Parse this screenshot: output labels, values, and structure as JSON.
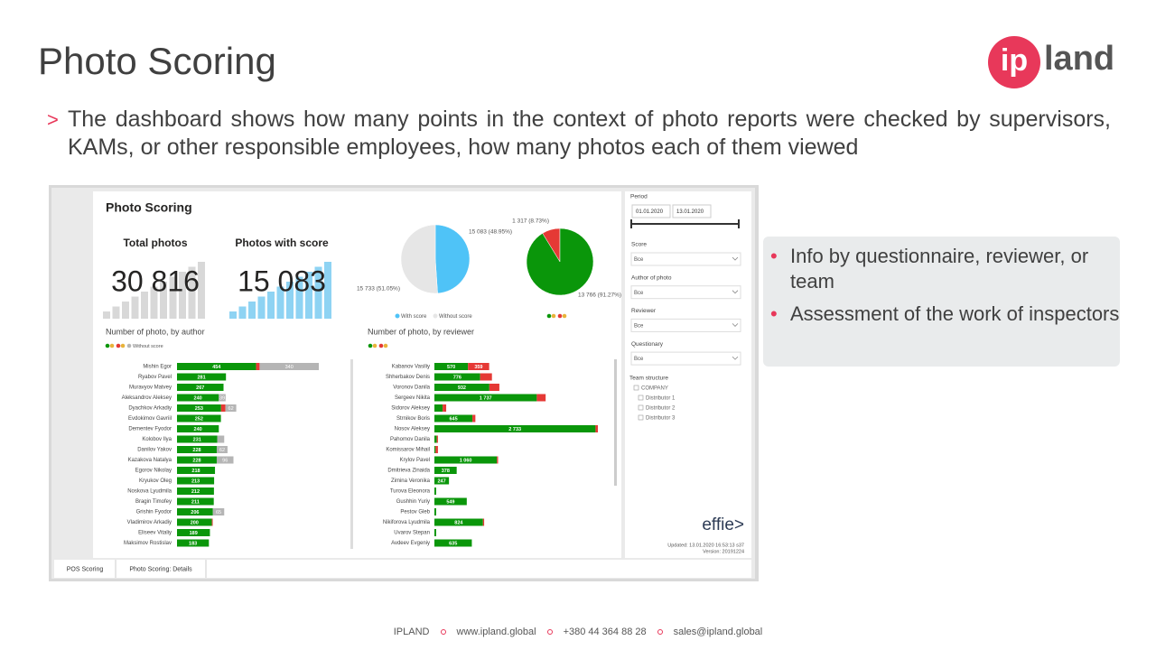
{
  "header": {
    "title": "Photo Scoring",
    "logo": {
      "left": "ip",
      "right": "land"
    }
  },
  "intro": {
    "marker": ">",
    "text": "The dashboard shows how many points in the context of photo reports were checked by supervisors, KAMs, or other responsible employees, how many photos each of them viewed"
  },
  "dashboard": {
    "title": "Photo Scoring",
    "kpis": [
      {
        "label": "Total photos",
        "value": "30 816"
      },
      {
        "label": "Photos with score",
        "value": "15 083"
      }
    ],
    "coverage_pie": {
      "slices": [
        {
          "name": "With score",
          "value": 15083,
          "label": "15 083 (48.95%)",
          "color": "#4fc3f7"
        },
        {
          "name": "Without score",
          "value": 15733,
          "label": "15 733 (51.05%)",
          "color": "#e6e6e6"
        }
      ]
    },
    "result_pie": {
      "slices": [
        {
          "value": 1317,
          "label": "1 317 (8.73%)",
          "color": "#e53935"
        },
        {
          "value": 13766,
          "label": "13 766 (91.27%)",
          "color": "#0a960a"
        }
      ]
    },
    "by_author": {
      "title": "Number of photo, by author",
      "legend": "Without score",
      "rows": [
        {
          "name": "Mishin Egor",
          "score": 454,
          "fail": 20,
          "none": 340,
          "none_label": "340"
        },
        {
          "name": "Ryabov Pavel",
          "score": 281
        },
        {
          "name": "Muravyov Matvey",
          "score": 267
        },
        {
          "name": "Aleksandrov Aleksey",
          "score": 240,
          "none": 39,
          "none_label": "39"
        },
        {
          "name": "Dyachkov Arkadiy",
          "score": 253,
          "fail": 25,
          "none": 62,
          "none_label": "62"
        },
        {
          "name": "Evdokimov Gavriil",
          "score": 252
        },
        {
          "name": "Dementev Fyodor",
          "score": 240
        },
        {
          "name": "Kolobov Ilya",
          "score": 231,
          "none": 40
        },
        {
          "name": "Danilov Yakov",
          "score": 228,
          "none": 62,
          "none_label": "62"
        },
        {
          "name": "Kazakova Natalya",
          "score": 228,
          "none": 96,
          "none_label": "96"
        },
        {
          "name": "Egorov Nikolay",
          "score": 218
        },
        {
          "name": "Kryukov Oleg",
          "score": 213
        },
        {
          "name": "Noskova Lyudmila",
          "score": 212
        },
        {
          "name": "Bragin Timofey",
          "score": 211
        },
        {
          "name": "Grishin Fyodor",
          "score": 206,
          "none": 65,
          "none_label": "65"
        },
        {
          "name": "Vladimirov Arkadiy",
          "score": 200,
          "fail": 5
        },
        {
          "name": "Eliseev Vitaliy",
          "score": 189
        },
        {
          "name": "Maksimov Rostislav",
          "score": 183
        }
      ]
    },
    "by_reviewer": {
      "title": "Number of photo, by reviewer",
      "rows": [
        {
          "name": "Kabanov Vasiliy",
          "score": 570,
          "score_label": "570",
          "fail": 359,
          "fail_label": "359"
        },
        {
          "name": "Shherbakov Denis",
          "score": 776,
          "score_label": "776",
          "fail": 200
        },
        {
          "name": "Voronov Danila",
          "score": 932,
          "score_label": "932",
          "fail": 170
        },
        {
          "name": "Sergeev Nikita",
          "score": 1737,
          "score_label": "1 737",
          "fail": 150
        },
        {
          "name": "Sidorov Aleksey",
          "score": 140,
          "fail": 60
        },
        {
          "name": "Strnikov Boris",
          "score": 645,
          "score_label": "645",
          "fail": 50
        },
        {
          "name": "Nosov Aleksey",
          "score": 2733,
          "score_label": "2 733",
          "fail": 40
        },
        {
          "name": "Pahomov Danila",
          "score": 40,
          "fail": 20
        },
        {
          "name": "Komissarov Mihail",
          "score": 20,
          "fail": 40
        },
        {
          "name": "Krylov Pavel",
          "score": 1060,
          "score_label": "1 060",
          "fail": 20
        },
        {
          "name": "Dmitrieva Zinaida",
          "score": 378,
          "score_label": "378"
        },
        {
          "name": "Zimina Veronika",
          "score": 247,
          "score_label": "247"
        },
        {
          "name": "Turova Eleonora",
          "score": 30
        },
        {
          "name": "Gushhin Yuriy",
          "score": 549,
          "score_label": "549"
        },
        {
          "name": "Pestov Gleb",
          "score": 30
        },
        {
          "name": "Nikiforova Lyudmila",
          "score": 824,
          "score_label": "824",
          "fail": 20
        },
        {
          "name": "Uvarov Stepan",
          "score": 30
        },
        {
          "name": "Avdeev Evgeniy",
          "score": 635,
          "score_label": "635"
        }
      ]
    },
    "filters": {
      "period": {
        "label": "Period",
        "from": "01.01.2020",
        "to": "13.01.2020"
      },
      "dropdowns": [
        {
          "label": "Score",
          "value": "Все"
        },
        {
          "label": "Author of photo",
          "value": "Все"
        },
        {
          "label": "Reviewer",
          "value": "Все"
        },
        {
          "label": "Questionary",
          "value": "Все"
        }
      ],
      "team": {
        "label": "Team structure",
        "items": [
          "COMPANY",
          "Distributor 1",
          "Distributor 2",
          "Distributor 3"
        ]
      }
    },
    "brand": "effie>",
    "updated": "Updated: 13.01.2020 16:53:13 s37",
    "version": "Version: 20191224",
    "tabs": [
      "POS Scoring",
      "Photo Scoring: Details"
    ]
  },
  "callout": {
    "items": [
      "Info by questionnaire, reviewer, or team",
      "Assessment of the work of inspectors"
    ]
  },
  "footer": {
    "items": [
      "IPLAND",
      "www.ipland.global",
      "+380 44 364 88 28",
      "sales@ipland.global"
    ]
  }
}
